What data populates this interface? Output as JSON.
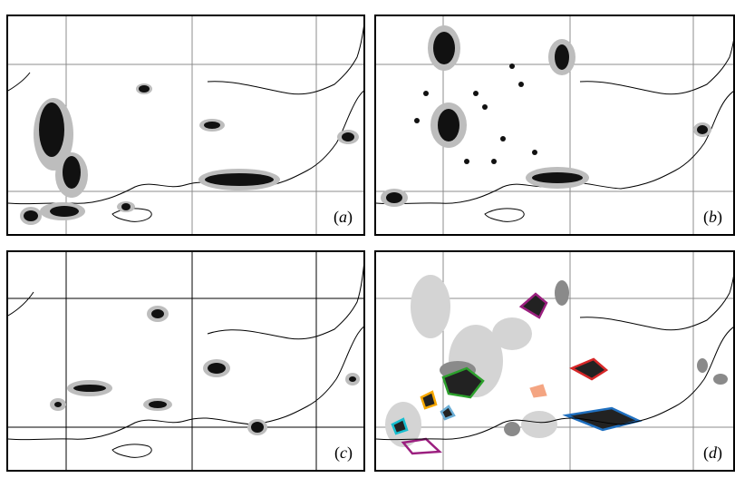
{
  "panels": [
    {
      "id": "a",
      "label_open": "(",
      "label_letter": "a",
      "label_close": ")"
    },
    {
      "id": "b",
      "label_open": "(",
      "label_letter": "b",
      "label_close": ")"
    },
    {
      "id": "c",
      "label_open": "(",
      "label_letter": "c",
      "label_close": ")"
    },
    {
      "id": "d",
      "label_open": "(",
      "label_letter": "d",
      "label_close": ")"
    }
  ],
  "colors": {
    "cluster_core": "#111111",
    "cluster_halo": "#b8b8b8",
    "grid_line": "#7f7f7f",
    "coastline": "#000000",
    "light_grey": "#d4d4d4",
    "mid_grey": "#8a8a8a",
    "outline_purple": "#9b1f7f",
    "outline_red": "#d62728",
    "outline_green": "#2ca02c",
    "outline_blue": "#1f6fbf",
    "outline_lightblue": "#6baed6",
    "outline_orange": "#f7a800",
    "outline_salmon": "#f4a582",
    "outline_teal": "#17becf"
  }
}
